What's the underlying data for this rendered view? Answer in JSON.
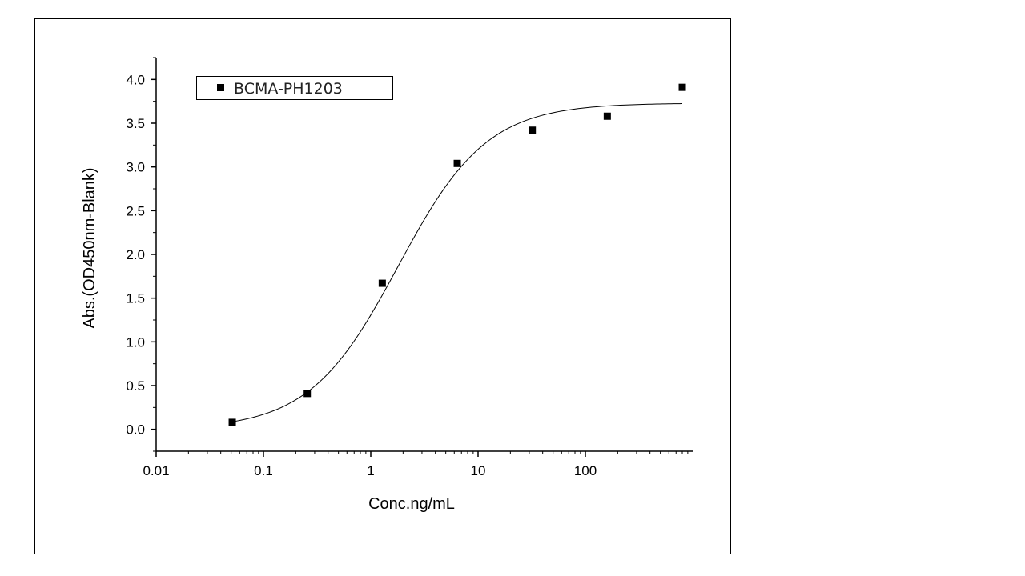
{
  "chart_data": {
    "type": "scatter",
    "xscale": "log",
    "xlabel": "Conc.ng/mL",
    "ylabel": "Abs.(OD450nm-Blank)",
    "xlim": [
      0.01,
      1000
    ],
    "ylim": [
      -0.25,
      4.25
    ],
    "x_ticks": [
      0.01,
      0.1,
      1,
      10,
      100
    ],
    "x_tick_labels": [
      "0.01",
      "0.1",
      "1",
      "10",
      "100"
    ],
    "y_ticks": [
      0.0,
      0.5,
      1.0,
      1.5,
      2.0,
      2.5,
      3.0,
      3.5,
      4.0
    ],
    "y_tick_labels": [
      "0.0",
      "0.5",
      "1.0",
      "1.5",
      "2.0",
      "2.5",
      "3.0",
      "3.5",
      "4.0"
    ],
    "grid": false,
    "legend": {
      "position": "top-left"
    },
    "series": [
      {
        "name": "BCMA-PH1203",
        "marker": "square",
        "color": "#000000",
        "x": [
          0.0512,
          0.256,
          1.28,
          6.4,
          32,
          160,
          800
        ],
        "y": [
          0.08,
          0.41,
          1.67,
          3.04,
          3.42,
          3.58,
          3.91
        ]
      }
    ],
    "fit_curve": {
      "type": "4PL",
      "color": "#000000",
      "bottom": 0.0,
      "top": 3.73,
      "ec50": 1.8,
      "hill": 1.05,
      "x_range": [
        0.0512,
        800
      ]
    }
  }
}
